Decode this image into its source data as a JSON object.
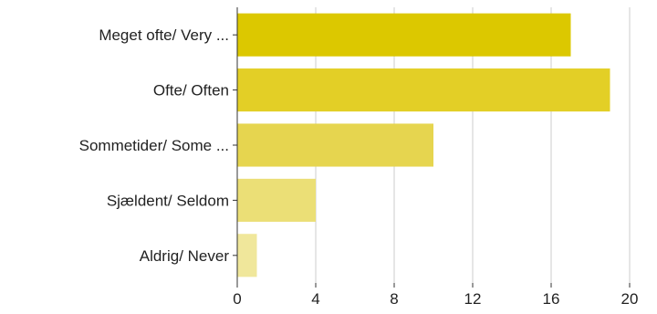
{
  "chart_data": {
    "type": "bar",
    "orientation": "horizontal",
    "categories": [
      "Meget ofte/ Very ...",
      "Ofte/ Often",
      "Sommetider/ Some ...",
      "Sjældent/ Seldom",
      "Aldrig/ Never"
    ],
    "values": [
      17,
      19,
      10,
      4,
      1
    ],
    "colors": [
      "#dcc800",
      "#e3cf26",
      "#e6d54f",
      "#ebdf76",
      "#f0e79b"
    ],
    "xlim": [
      0,
      20
    ],
    "xticks": [
      "0",
      "4",
      "8",
      "12",
      "16",
      "20"
    ],
    "grid": true,
    "legend": "none"
  }
}
